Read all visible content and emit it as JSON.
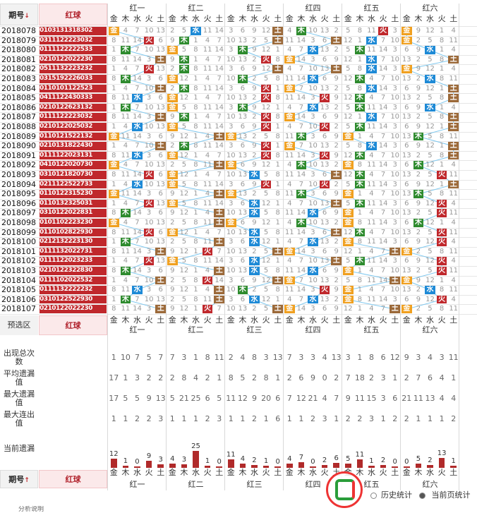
{
  "header": {
    "period_label": "期号",
    "sort_down": "↓",
    "sort_up": "↑",
    "red_label": "红球",
    "preselect_label": "预选区"
  },
  "groups": [
    "红一",
    "红二",
    "红三",
    "红四",
    "红五",
    "红六"
  ],
  "elements": [
    "金",
    "木",
    "水",
    "火",
    "土"
  ],
  "periods": [
    "2018078",
    "2018079",
    "2018080",
    "2018081",
    "2018082",
    "2018083",
    "2018084",
    "2018085",
    "2018086",
    "2018087",
    "2018088",
    "2018089",
    "2018090",
    "2018091",
    "2018092",
    "2018093",
    "2018094",
    "2018095",
    "2018096",
    "2018097",
    "2018098",
    "2018099",
    "2018100",
    "2018101",
    "2018102",
    "2018103",
    "2018104",
    "2018105",
    "2018106",
    "2018107"
  ],
  "ball_strings": [
    "0103131318302",
    "0311122223032",
    "0111122222533",
    "0210122022230",
    "0511132223232",
    "0315192226033",
    "0110101122523",
    "0411122430333",
    "0210122623132",
    "0111122223032",
    "0210122025032",
    "0110121522132",
    "0210131822430",
    "0111122023131",
    "0410122020730",
    "0310121820730",
    "0211122522733",
    "0110122315230",
    "0110132325031",
    "0310122022831",
    "0101102223230",
    "0110102822930",
    "0212132223130",
    "0111132022731",
    "0111122023233",
    "0210122322830",
    "0111102022532",
    "0111132222232",
    "0310122522930",
    "0210122022230"
  ],
  "stats": {
    "labels": [
      "出现总次数",
      "平均遗漏值",
      "最大遗漏值",
      "最大连出值",
      "当前遗漏"
    ],
    "rows": [
      [
        "1",
        "10",
        "7",
        "5",
        "7",
        "7",
        "3",
        "1",
        "8",
        "11",
        "2",
        "4",
        "8",
        "3",
        "13",
        "7",
        "3",
        "3",
        "4",
        "13",
        "3",
        "1",
        "8",
        "6",
        "12",
        "9",
        "3",
        "4",
        "3",
        "11"
      ],
      [
        "17",
        "1",
        "3",
        "2",
        "2",
        "2",
        "8",
        "4",
        "2",
        "1",
        "8",
        "5",
        "2",
        "8",
        "1",
        "2",
        "6",
        "9",
        "0",
        "2",
        "7",
        "18",
        "2",
        "3",
        "1",
        "2",
        "7",
        "6",
        "4",
        "1"
      ],
      [
        "17",
        "5",
        "5",
        "9",
        "13",
        "5",
        "21",
        "25",
        "6",
        "5",
        "11",
        "12",
        "9",
        "20",
        "6",
        "7",
        "12",
        "21",
        "4",
        "7",
        "9",
        "11",
        "15",
        "3",
        "6",
        "21",
        "11",
        "13",
        "4",
        "4"
      ],
      [
        "1",
        "1",
        "2",
        "2",
        "3",
        "1",
        "1",
        "1",
        "2",
        "3",
        "1",
        "1",
        "2",
        "1",
        "6",
        "1",
        "1",
        "2",
        "3",
        "1",
        "2",
        "2",
        "3",
        "1",
        "2",
        "2",
        "1",
        "1",
        "1",
        "2"
      ]
    ],
    "current_missing": [
      "12",
      "1",
      "0",
      "9",
      "3",
      "4",
      "3",
      "25",
      "1",
      "0",
      "11",
      "4",
      "2",
      "1",
      "0",
      "4",
      "7",
      "0",
      "2",
      "6",
      "5",
      "11",
      "1",
      "2",
      "0",
      "0",
      "5",
      "2",
      "13",
      "1"
    ]
  },
  "footer": {
    "history_label": "历史统计",
    "current_label": "当前页统计",
    "bottom_text": "分析说明"
  },
  "colors": {
    "gold": "#f0a020",
    "wood": "#2e8b2e",
    "water": "#1e8ad6",
    "fire": "#c0282c",
    "earth": "#9c6a3a",
    "header_red": "#b0202a",
    "line": "#7fc8ef"
  }
}
